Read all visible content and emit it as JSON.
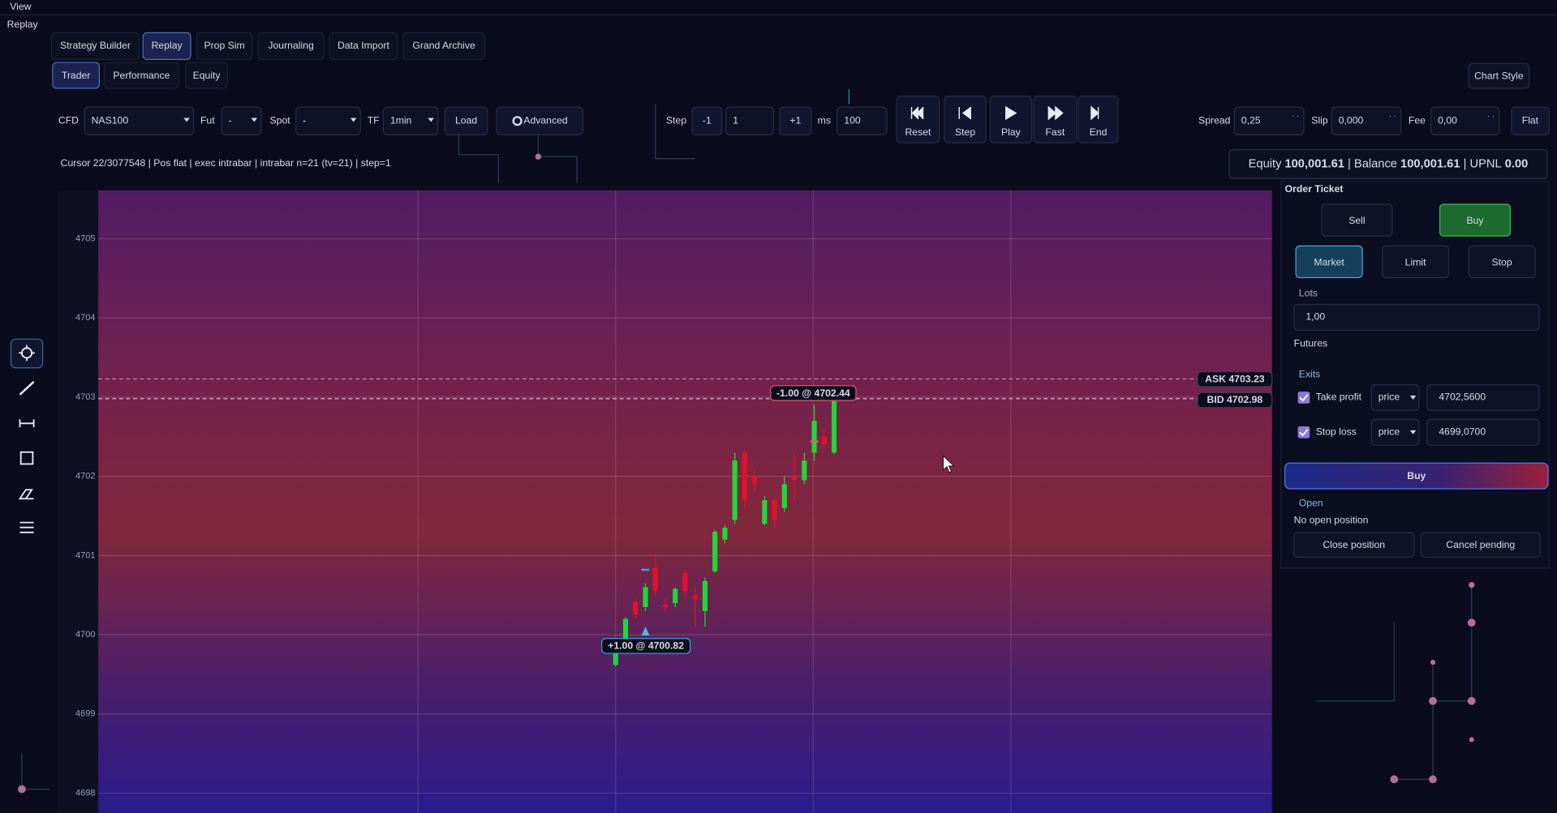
{
  "menu": [
    "View",
    "Replay"
  ],
  "tabs": [
    "Strategy Builder",
    "Replay",
    "Prop Sim",
    "Journaling",
    "Data Import",
    "Grand Archive"
  ],
  "subtabs": [
    "Trader",
    "Performance",
    "Equity"
  ],
  "chart_style": "Chart Style",
  "toolbar": {
    "cfd_label": "CFD",
    "cfd_value": "NAS100",
    "fut_label": "Fut",
    "fut_value": "-",
    "spot_label": "Spot",
    "spot_value": "-",
    "tf_label": "TF",
    "tf_value": "1min",
    "load": "Load",
    "advanced": "Advanced",
    "step_label": "Step",
    "step_minus": "-1",
    "step_value": "1",
    "step_plus": "+1",
    "ms_label": "ms",
    "ms_value": "100",
    "transport": [
      "Reset",
      "Step",
      "Play",
      "Fast",
      "End"
    ],
    "spread_label": "Spread",
    "spread_value": "0,25",
    "slip_label": "Slip",
    "slip_value": "0,000",
    "fee_label": "Fee",
    "fee_value": "0,00",
    "flat": "Flat"
  },
  "status": "Cursor 22/3077548 | Pos flat | exec intrabar | intrabar n=21 (tv=21) | step=1",
  "account": {
    "equity_label": "Equity",
    "equity": "100,001.61",
    "balance_label": "Balance",
    "balance": "100,001.61",
    "upnl_label": "UPNL",
    "upnl": "0.00"
  },
  "chart_data": {
    "type": "candlestick",
    "ylim": [
      4697.75,
      4705.61
    ],
    "yticks": [
      4698,
      4699,
      4700,
      4701,
      4702,
      4703,
      4704,
      4705
    ],
    "grid": true,
    "up_color": "#22d63a",
    "down_color": "#e3102a",
    "candles": {
      "open": [
        4699.62,
        4699.92,
        4700.42,
        4700.35,
        4700.85,
        4700.38,
        4700.4,
        4700.78,
        4700.5,
        4700.3,
        4700.8,
        4701.2,
        4701.45,
        4702.3,
        4702.0,
        4701.4,
        4701.7,
        4701.6,
        4702.0,
        4701.95,
        4702.3,
        4702.5,
        4702.3
      ],
      "high": [
        4699.88,
        4700.22,
        4700.45,
        4700.65,
        4701.0,
        4700.45,
        4700.6,
        4700.82,
        4700.6,
        4700.72,
        4701.32,
        4701.38,
        4702.3,
        4702.32,
        4702.1,
        4701.75,
        4701.75,
        4702.0,
        4702.3,
        4702.3,
        4702.9,
        4702.6,
        4703.0
      ],
      "low": [
        4699.6,
        4699.9,
        4700.2,
        4700.3,
        4700.5,
        4700.3,
        4700.35,
        4700.5,
        4700.1,
        4700.1,
        4700.78,
        4701.15,
        4701.4,
        4701.6,
        4701.8,
        4701.38,
        4701.35,
        4701.55,
        4701.7,
        4701.9,
        4702.2,
        4702.35,
        4702.28
      ],
      "close": [
        4699.85,
        4700.2,
        4700.25,
        4700.6,
        4700.55,
        4700.35,
        4700.58,
        4700.55,
        4700.45,
        4700.68,
        4701.3,
        4701.35,
        4702.2,
        4701.7,
        4701.9,
        4701.7,
        4701.45,
        4701.9,
        4701.95,
        4702.2,
        4702.7,
        4702.4,
        4702.95
      ]
    },
    "ask": {
      "label": "ASK",
      "value": 4703.23
    },
    "bid": {
      "label": "BID",
      "value": 4702.98
    },
    "trades": [
      {
        "label": "+1.00 @ 4700.82",
        "price": 4700.82
      },
      {
        "label": "-1.00 @ 4702.44",
        "price": 4702.44
      }
    ]
  },
  "order_ticket": {
    "title": "Order Ticket",
    "sides": [
      "Sell",
      "Buy"
    ],
    "order_types": [
      "Market",
      "Limit",
      "Stop"
    ],
    "lots_label": "Lots",
    "lots": "1,00",
    "instrument": "Futures",
    "exits_label": "Exits",
    "exits": [
      {
        "label": "Take profit",
        "mode": "price",
        "value": "4702,5600"
      },
      {
        "label": "Stop loss",
        "mode": "price",
        "value": "4699,0700"
      }
    ],
    "submit": "Buy",
    "open_label": "Open",
    "open_status": "No open position",
    "actions": [
      "Close position",
      "Cancel pending"
    ]
  }
}
